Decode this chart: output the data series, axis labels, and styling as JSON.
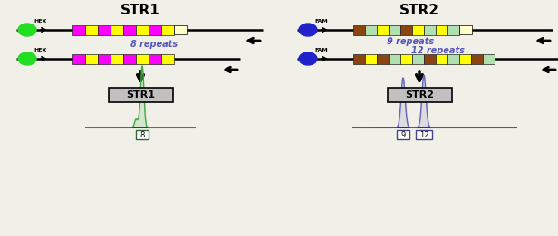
{
  "bg_color": "#f0f0e8",
  "title_str1": "STR1",
  "title_str2": "STR2",
  "title_fontsize": 11,
  "title_color": "#000000",
  "repeat_label_color": "#5555bb",
  "hex_color": "#22dd22",
  "fam_color": "#2222cc",
  "label_8": "8 repeats",
  "label_9": "9 repeats",
  "label_12": "12 repeats",
  "box_label_8": "8",
  "box_label_9": "9",
  "box_label_12": "12",
  "str1_box_label": "STR1",
  "str2_box_label": "STR2",
  "str1_colors": [
    "#ff00ff",
    "#ffff00",
    "#ff00ff",
    "#ffff00",
    "#ff00ff",
    "#ffff00",
    "#ff00ff",
    "#ffff00"
  ],
  "str2_top_colors": [
    "#8B4513",
    "#b0e0b0",
    "#ffff00",
    "#b0e0b0",
    "#8B4513",
    "#ffff00",
    "#b0e0b0",
    "#ffff00",
    "#b0e0b0"
  ],
  "str2_bot_colors": [
    "#8B4513",
    "#ffff00",
    "#8B4513",
    "#b0e0b0",
    "#ffff00",
    "#b0e0b0",
    "#8B4513",
    "#ffff00",
    "#b0e0b0",
    "#ffff00",
    "#8B4513",
    "#b0e0b0"
  ],
  "peak1_color": "#44aa44",
  "peak2_color": "#6666bb",
  "strand_line_color": "#000000",
  "box_border_color1": "#336633",
  "box_border_color2": "#444488",
  "gray_box_color": "#c0c0c0"
}
